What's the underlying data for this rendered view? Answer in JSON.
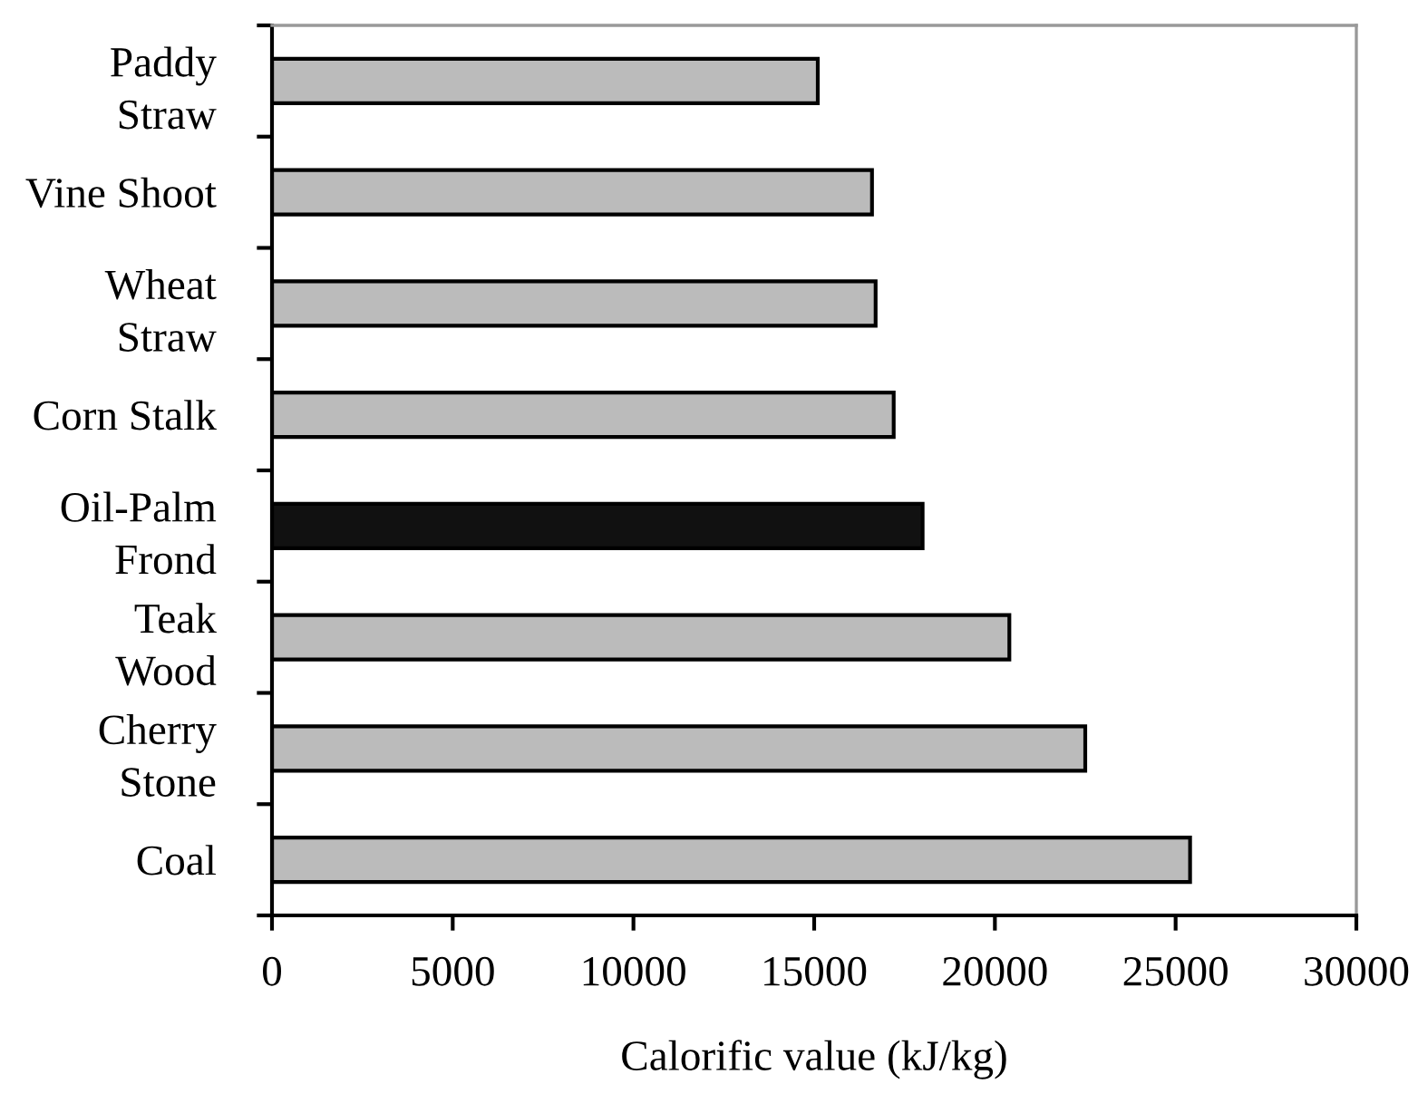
{
  "chart_data": {
    "type": "bar",
    "orientation": "horizontal",
    "xlabel": "Calorific value (kJ/kg)",
    "categories": [
      "Paddy\nStraw",
      "Vine Shoot",
      "Wheat\nStraw",
      "Corn Stalk",
      "Oil-Palm\nFrond",
      "Teak\nWood",
      "Cherry\nStone",
      "Coal"
    ],
    "values": [
      15100,
      16600,
      16700,
      17200,
      18000,
      20400,
      22500,
      25400
    ],
    "colors": [
      "#bbbbbb",
      "#bbbbbb",
      "#bbbbbb",
      "#bbbbbb",
      "#111111",
      "#bbbbbb",
      "#bbbbbb",
      "#bbbbbb"
    ],
    "xlim": [
      0,
      30000
    ],
    "xticks": [
      0,
      5000,
      10000,
      15000,
      20000,
      25000,
      30000
    ],
    "grid": false,
    "legend": false
  }
}
